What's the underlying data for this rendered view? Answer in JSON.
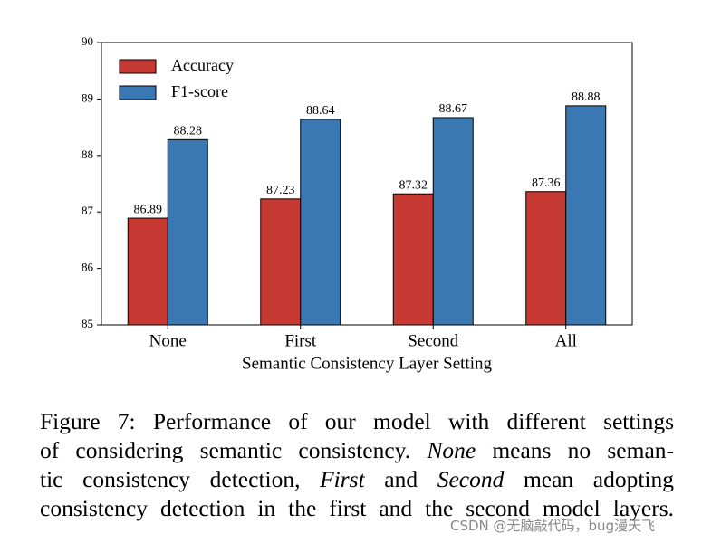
{
  "chart_data": {
    "type": "bar",
    "x_label": "Semantic Consistency Layer Setting",
    "categories": [
      "None",
      "First",
      "Second",
      "All"
    ],
    "series": [
      {
        "name": "Accuracy",
        "color": "#c73a33",
        "values": [
          86.89,
          87.23,
          87.32,
          87.36
        ]
      },
      {
        "name": "F1-score",
        "color": "#3a78b3",
        "values": [
          88.28,
          88.64,
          88.67,
          88.88
        ]
      }
    ],
    "ylim": [
      85,
      90
    ],
    "yticks": [
      85,
      86,
      87,
      88,
      89,
      90
    ],
    "grid": false,
    "legend": "upper-left",
    "value_labels_shown": true
  },
  "caption": {
    "lines": [
      [
        {
          "text": "Figure 7: Performance of our model with different settings"
        }
      ],
      [
        {
          "text": "of considering semantic consistency. "
        },
        {
          "text": "None",
          "italic": true
        },
        {
          "text": " means no seman-"
        }
      ],
      [
        {
          "text": "tic consistency detection, "
        },
        {
          "text": "First",
          "italic": true
        },
        {
          "text": " and "
        },
        {
          "text": "Second",
          "italic": true
        },
        {
          "text": " mean adopting"
        }
      ],
      [
        {
          "text": "consistency detection in the first and the second model layers."
        }
      ]
    ]
  },
  "watermark": "CSDN @无脑敲代码，bug漫天飞"
}
